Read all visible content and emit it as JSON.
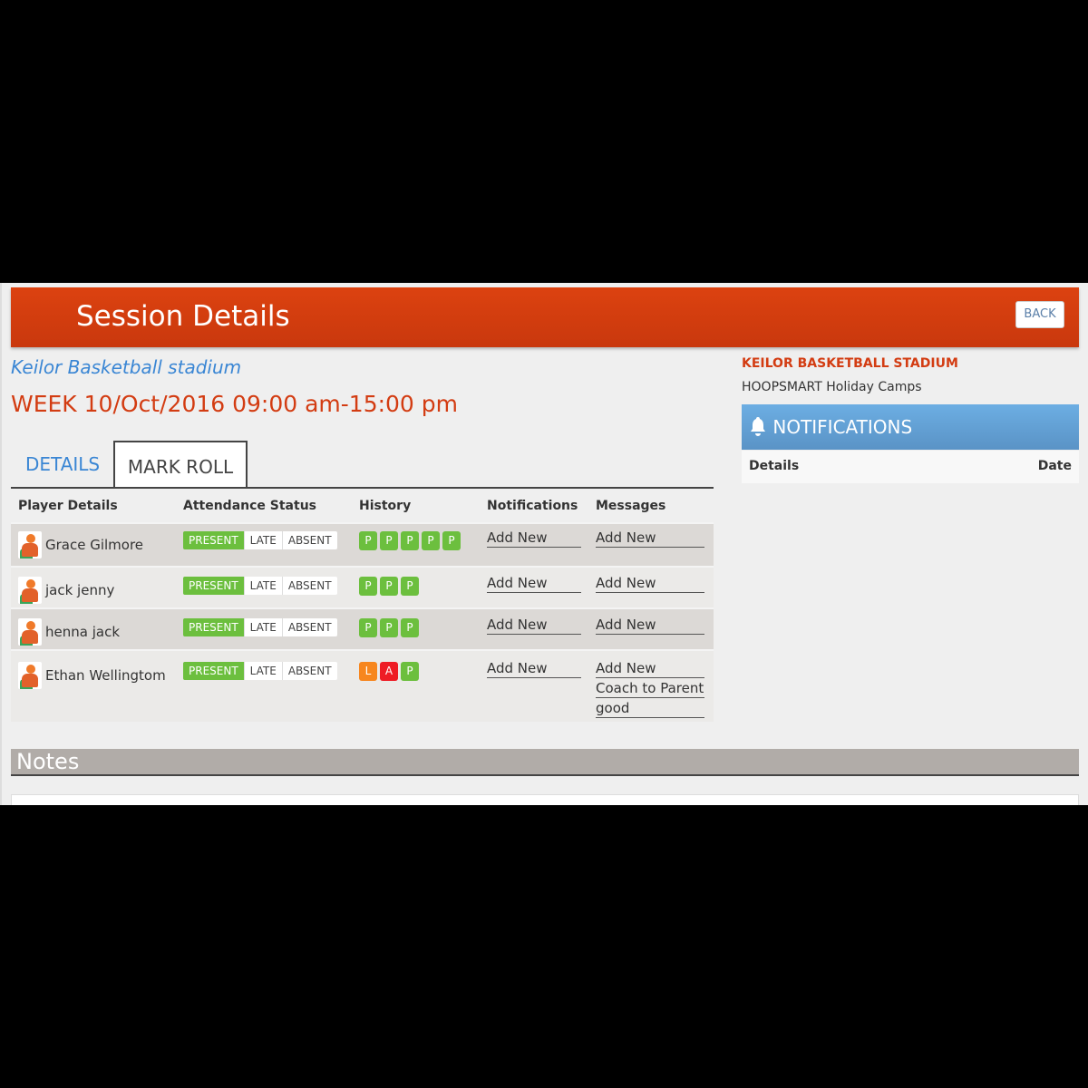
{
  "header": {
    "title": "Session Details",
    "back_label": "BACK"
  },
  "venue": "Keilor Basketball stadium",
  "week": "WEEK 10/Oct/2016 09:00 am-15:00 pm",
  "tabs": [
    {
      "label": "DETAILS",
      "active": false
    },
    {
      "label": "MARK ROLL",
      "active": true
    }
  ],
  "table": {
    "columns": [
      "Player Details",
      "Attendance Status",
      "History",
      "Notifications",
      "Messages"
    ],
    "status_options": [
      "PRESENT",
      "LATE",
      "ABSENT"
    ],
    "rows": [
      {
        "name": "Grace Gilmore",
        "status": "PRESENT",
        "history": [
          "P",
          "P",
          "P",
          "P",
          "P"
        ],
        "notifications": [
          "Add New"
        ],
        "messages": [
          "Add New"
        ]
      },
      {
        "name": "jack jenny",
        "status": "PRESENT",
        "history": [
          "P",
          "P",
          "P"
        ],
        "notifications": [
          "Add New"
        ],
        "messages": [
          "Add New"
        ]
      },
      {
        "name": "henna jack",
        "status": "PRESENT",
        "history": [
          "P",
          "P",
          "P"
        ],
        "notifications": [
          "Add New"
        ],
        "messages": [
          "Add New"
        ]
      },
      {
        "name": "Ethan Wellingtom",
        "status": "PRESENT",
        "history": [
          "L",
          "A",
          "P"
        ],
        "notifications": [
          "Add New"
        ],
        "messages": [
          "Add New",
          "Coach to Parent",
          "good"
        ]
      }
    ]
  },
  "history_colors": {
    "P": "#6cbf3e",
    "L": "#f7861e",
    "A": "#ee1c25"
  },
  "sidebar": {
    "stadium": "KEILOR BASKETBALL STADIUM",
    "camp": "HOOPSMART Holiday Camps",
    "notifications_title": "NOTIFICATIONS",
    "columns": [
      "Details",
      "Date"
    ]
  },
  "notes": {
    "title": "Notes"
  }
}
